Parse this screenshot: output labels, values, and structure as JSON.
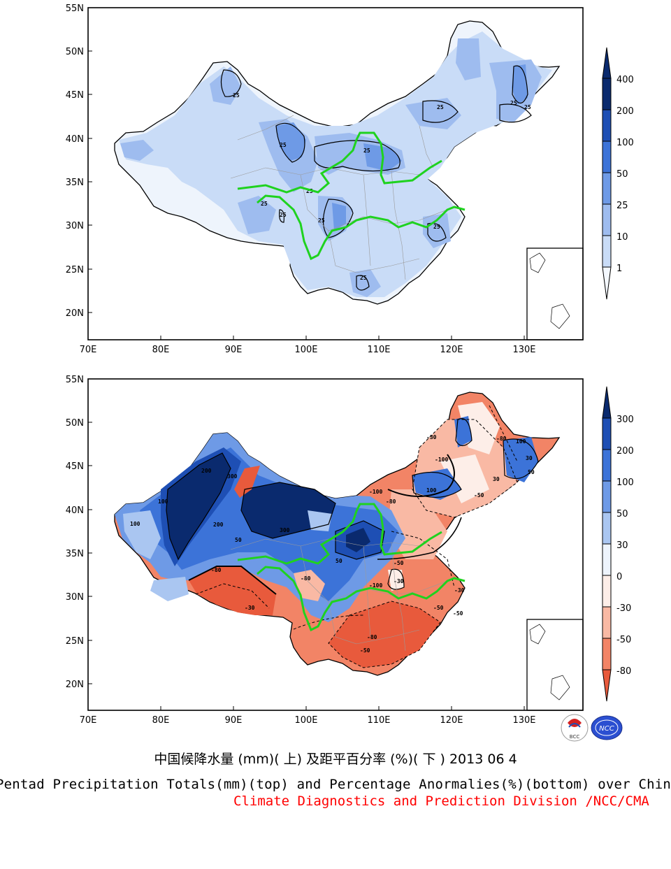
{
  "captions": {
    "chinese": "中国候降水量 (mm)( 上) 及距平百分率 (%)( 下 ) 2013 06 4",
    "english": "Pentad Precipitation Totals(mm)(top) and Percentage Anormalies(%)(bottom) over China",
    "division": "Climate Diagnostics and Prediction Division /NCC/CMA"
  },
  "axes": {
    "lat_labels": [
      "55N",
      "50N",
      "45N",
      "40N",
      "35N",
      "30N",
      "25N",
      "20N"
    ],
    "lon_labels": [
      "70E",
      "80E",
      "90E",
      "100E",
      "110E",
      "120E",
      "130E"
    ]
  },
  "top_map": {
    "legend_levels": [
      "400",
      "200",
      "100",
      "50",
      "25",
      "10",
      "1"
    ],
    "legend_colors": [
      "#0a2a6e",
      "#1e4fb4",
      "#3c73d8",
      "#6e9ae6",
      "#9ebcef",
      "#c9dcf7",
      "#f4f8fe"
    ],
    "contour_labels": [
      "25",
      "25",
      "25",
      "25",
      "25",
      "25",
      "25",
      "25",
      "25",
      "25",
      "25",
      "25"
    ]
  },
  "bottom_map": {
    "legend_levels": [
      "300",
      "200",
      "100",
      "50",
      "30",
      "0",
      "-30",
      "-50",
      "-80"
    ],
    "legend_colors": [
      "#0a2a6e",
      "#1e4fb4",
      "#3c73d8",
      "#6e9ae6",
      "#aac6f1",
      "#eef4fc",
      "#fdeee8",
      "#f9b9a4",
      "#f28466",
      "#e85a3c"
    ],
    "contour_labels": [
      "300",
      "200",
      "100",
      "100",
      "50",
      "50",
      "30",
      "-30",
      "-50",
      "-80",
      "-100",
      "100",
      "200",
      "300",
      "-30",
      "-50",
      "-80",
      "-50",
      "-100",
      "-80",
      "-30",
      "-50",
      "100",
      "50",
      "30",
      "-30",
      "-50",
      "-80",
      "-100",
      "-80"
    ]
  },
  "logos": {
    "bcc": "BCC",
    "ncc": "NCC"
  },
  "colors": {
    "river": "#1fd21f",
    "division_text": "#ff0000"
  }
}
